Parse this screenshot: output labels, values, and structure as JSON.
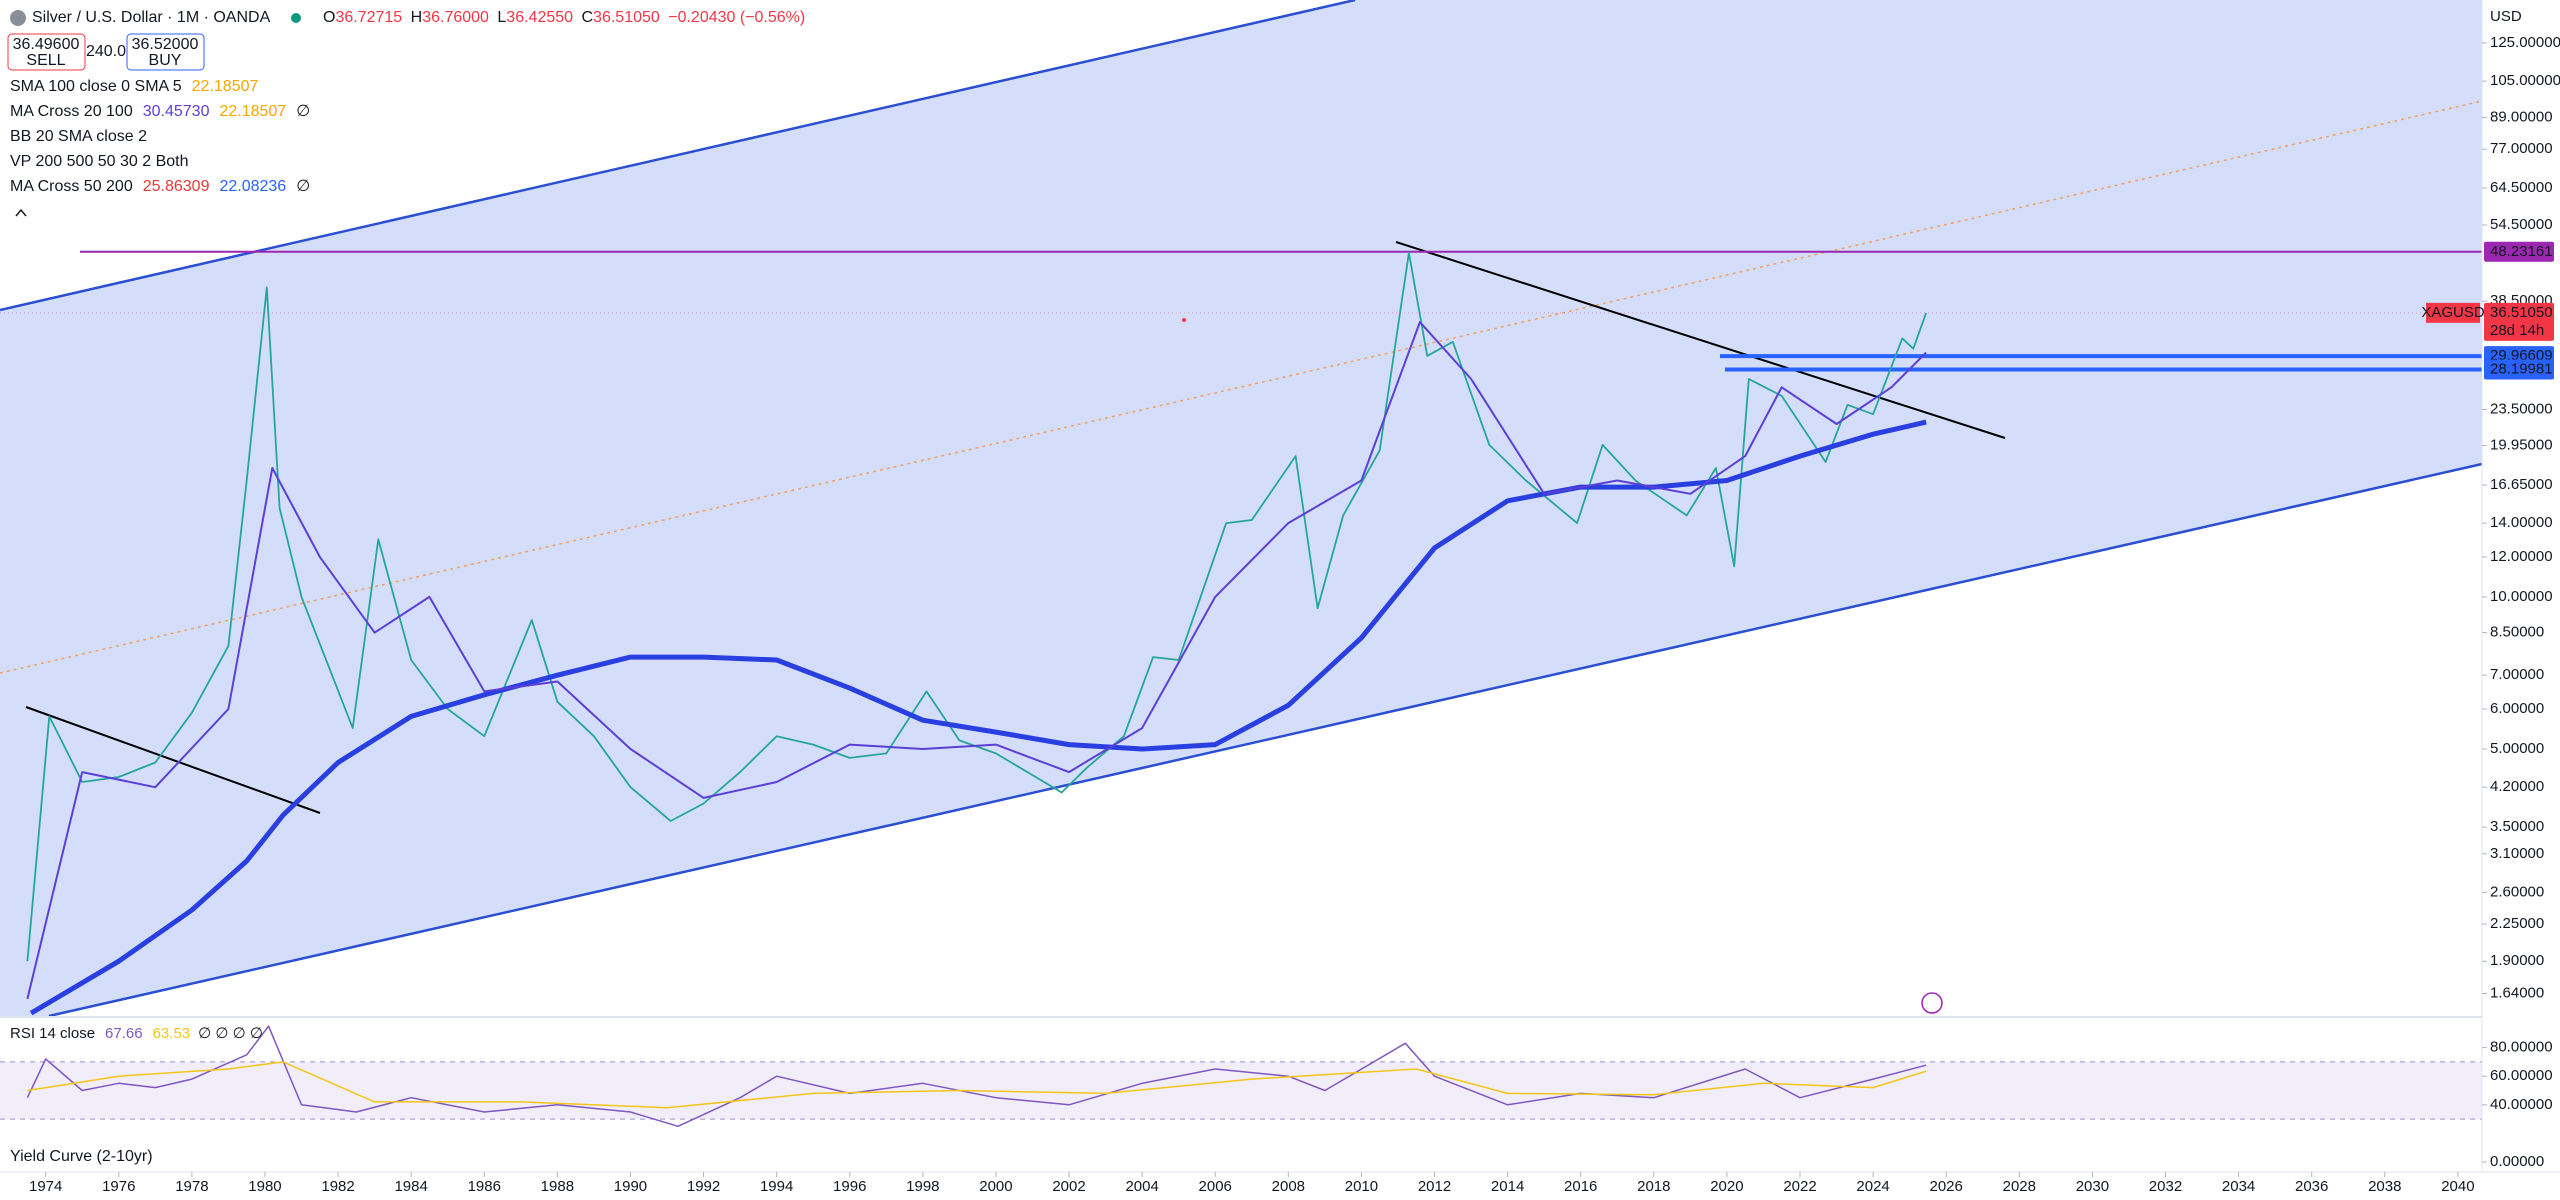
{
  "header": {
    "symbol": "Silver / U.S. Dollar · 1M · OANDA",
    "ohlc": [
      {
        "label": "O",
        "value": "36.72715"
      },
      {
        "label": "H",
        "value": "36.76000"
      },
      {
        "label": "L",
        "value": "36.42550"
      },
      {
        "label": "C",
        "value": "36.51050"
      }
    ],
    "change": "−0.20430 (−0.56%)",
    "sell": {
      "price": "36.49600",
      "label": "SELL"
    },
    "spread": "240.0",
    "buy": {
      "price": "36.52000",
      "label": "BUY"
    },
    "indicators": [
      {
        "name": "SMA 100 close 0 SMA 5",
        "values": [
          "22.18507"
        ],
        "value_colors": [
          "#f7a600"
        ]
      },
      {
        "name": "MA Cross 20 100",
        "values": [
          "30.45730",
          "22.18507",
          "∅"
        ],
        "value_colors": [
          "#5b3fd6",
          "#f7a600",
          "#131722"
        ]
      },
      {
        "name": "BB 20 SMA close 2"
      },
      {
        "name": "VP 200 500 50 30 2 Both"
      },
      {
        "name": "MA Cross 50 200",
        "values": [
          "25.86309",
          "22.08236",
          "∅"
        ],
        "value_colors": [
          "#e53935",
          "#2962ff",
          "#131722"
        ]
      }
    ],
    "study_footer": "Yield Curve (2-10yr)"
  },
  "chart_data": [
    {
      "type": "line",
      "currency": "USD",
      "log_scale": true,
      "xlim": [
        1972.75,
        2040.66
      ],
      "xticks": [
        1974,
        1976,
        1978,
        1980,
        1982,
        1984,
        1986,
        1988,
        1990,
        1992,
        1994,
        1996,
        1998,
        2000,
        2002,
        2004,
        2006,
        2008,
        2010,
        2012,
        2014,
        2016,
        2018,
        2020,
        2022,
        2024,
        2026,
        2028,
        2030,
        2032,
        2034,
        2036,
        2038,
        2040
      ],
      "ylim": [
        1.48,
        152
      ],
      "yticks": [
        {
          "value": 125,
          "label": "125.00000"
        },
        {
          "value": 105,
          "label": "105.00000"
        },
        {
          "value": 89,
          "label": "89.00000"
        },
        {
          "value": 77,
          "label": "77.00000"
        },
        {
          "value": 64.5,
          "label": "64.50000"
        },
        {
          "value": 54.5,
          "label": "54.50000"
        },
        {
          "value": 38.5,
          "label": "38.50000"
        },
        {
          "value": 23.5,
          "label": "23.50000"
        },
        {
          "value": 19.95,
          "label": "19.95000"
        },
        {
          "value": 16.65,
          "label": "16.65000"
        },
        {
          "value": 14,
          "label": "14.00000"
        },
        {
          "value": 12,
          "label": "12.00000"
        },
        {
          "value": 10,
          "label": "10.00000"
        },
        {
          "value": 8.5,
          "label": "8.50000"
        },
        {
          "value": 7,
          "label": "7.00000"
        },
        {
          "value": 6,
          "label": "6.00000"
        },
        {
          "value": 5,
          "label": "5.00000"
        },
        {
          "value": 4.2,
          "label": "4.20000"
        },
        {
          "value": 3.5,
          "label": "3.50000"
        },
        {
          "value": 3.1,
          "label": "3.10000"
        },
        {
          "value": 2.6,
          "label": "2.60000"
        },
        {
          "value": 2.25,
          "label": "2.25000"
        },
        {
          "value": 1.9,
          "label": "1.90000"
        },
        {
          "value": 1.64,
          "label": "1.64000"
        }
      ],
      "series": [
        {
          "color": "#26a69a",
          "x": [
            1973.5,
            1974.1,
            1975,
            1976,
            1977,
            1978,
            1979,
            1979.5,
            1980.05,
            1980.4,
            1981,
            1982.4,
            1983.1,
            1984,
            1985,
            1986,
            1987.3,
            1988,
            1989,
            1990,
            1991.1,
            1992,
            1993,
            1994,
            1995,
            1996,
            1997,
            1998.1,
            1999,
            2000,
            2001.8,
            2002.5,
            2003.5,
            2004.3,
            2005,
            2006.3,
            2007,
            2008.2,
            2008.8,
            2009.5,
            2010.5,
            2011.3,
            2011.8,
            2012.5,
            2013.5,
            2014.5,
            2015.9,
            2016.6,
            2017.5,
            2018.9,
            2019.7,
            2020.2,
            2020.6,
            2021.5,
            2022.7,
            2023.3,
            2024,
            2024.8,
            2025.1,
            2025.45
          ],
          "values": [
            1.9,
            5.8,
            4.3,
            4.4,
            4.7,
            5.9,
            8,
            17,
            41,
            15,
            10,
            5.5,
            13,
            7.5,
            6,
            5.3,
            9,
            6.2,
            5.3,
            4.2,
            3.6,
            3.9,
            4.5,
            5.3,
            5.1,
            4.8,
            4.9,
            6.5,
            5.2,
            4.9,
            4.1,
            4.6,
            5.3,
            7.6,
            7.5,
            14,
            14.2,
            19,
            9.5,
            14.5,
            19.5,
            48,
            30,
            32,
            20,
            17,
            14,
            20,
            17,
            14.5,
            18,
            11.5,
            27,
            25,
            18.5,
            24,
            23,
            32.5,
            31,
            36.5105
          ]
        },
        {
          "color": "#2a3fe0",
          "x": [
            1973.6,
            1976,
            1978,
            1979.5,
            1980.5,
            1982,
            1984,
            1986,
            1988,
            1990,
            1992,
            1994,
            1996,
            1998,
            2000,
            2002,
            2004,
            2006,
            2008,
            2010,
            2012,
            2014,
            2016,
            2018,
            2020,
            2022,
            2024,
            2025.45
          ],
          "values": [
            1.5,
            1.9,
            2.4,
            3,
            3.7,
            4.7,
            5.8,
            6.4,
            7,
            7.6,
            7.6,
            7.5,
            6.6,
            5.7,
            5.4,
            5.1,
            5,
            5.1,
            6.1,
            8.3,
            12.5,
            15.5,
            16.5,
            16.5,
            17,
            19,
            21,
            22.18507
          ]
        },
        {
          "color": "#5b3fd6",
          "x": [
            1973.5,
            1975,
            1977,
            1979,
            1980.2,
            1981.5,
            1983,
            1984.5,
            1986,
            1988,
            1990,
            1992,
            1994,
            1996,
            1998,
            2000,
            2002,
            2004,
            2006,
            2008,
            2010,
            2011.6,
            2013,
            2015,
            2017,
            2019,
            2020.5,
            2021.5,
            2023,
            2024.5,
            2025.45
          ],
          "values": [
            1.6,
            4.5,
            4.2,
            6,
            18,
            12,
            8.5,
            10,
            6.5,
            6.8,
            5,
            4,
            4.3,
            5.1,
            5,
            5.1,
            4.5,
            5.5,
            10,
            14,
            17,
            35,
            27,
            16,
            17,
            16,
            19,
            26,
            22,
            26,
            30.4573
          ]
        }
      ],
      "price_lines": [
        {
          "value": 48.23161,
          "color": "#9c27b0"
        },
        {
          "value": 29.96609,
          "color": "#2962ff"
        },
        {
          "value": 28.19981,
          "color": "#2962ff"
        }
      ],
      "last_price": {
        "value": 36.5105,
        "label": "36.51050",
        "symbol": "XAGUSD",
        "countdown": "28d 14h",
        "color": "#f23645"
      }
    },
    {
      "type": "line",
      "title": "RSI 14 close",
      "flags": "∅ ∅ ∅ ∅",
      "xlim": [
        1972.75,
        2040.66
      ],
      "ylim": [
        0,
        100
      ],
      "band": [
        30,
        70
      ],
      "yticks": [
        {
          "value": 80,
          "label": "80.00000"
        },
        {
          "value": 60,
          "label": "60.00000"
        },
        {
          "value": 40,
          "label": "40.00000"
        },
        {
          "value": 0,
          "label": "0.00000"
        }
      ],
      "series": [
        {
          "color": "#7e57c2",
          "x": [
            1973.5,
            1974,
            1975,
            1976,
            1977,
            1978,
            1979.5,
            1980.1,
            1981,
            1982.5,
            1984,
            1986,
            1988,
            1990,
            1991.3,
            1993,
            1994,
            1996,
            1998,
            2000,
            2002,
            2004,
            2006,
            2008,
            2009,
            2011.2,
            2012,
            2014,
            2016,
            2018,
            2020.5,
            2022,
            2024,
            2025.45
          ],
          "values": [
            45,
            72,
            50,
            55,
            52,
            58,
            75,
            95,
            40,
            35,
            45,
            35,
            40,
            35,
            25,
            45,
            60,
            48,
            55,
            45,
            40,
            55,
            65,
            60,
            50,
            83,
            60,
            40,
            48,
            45,
            65,
            45,
            58,
            67.66
          ]
        },
        {
          "color": "#f5c518",
          "x": [
            1973.5,
            1976,
            1979,
            1980.5,
            1983,
            1987,
            1991,
            1995,
            1999,
            2003,
            2007,
            2011.5,
            2014,
            2018,
            2021,
            2024,
            2025.45
          ],
          "values": [
            50,
            60,
            65,
            70,
            42,
            42,
            38,
            48,
            50,
            48,
            58,
            65,
            48,
            47,
            55,
            52,
            63.53
          ]
        }
      ]
    }
  ]
}
